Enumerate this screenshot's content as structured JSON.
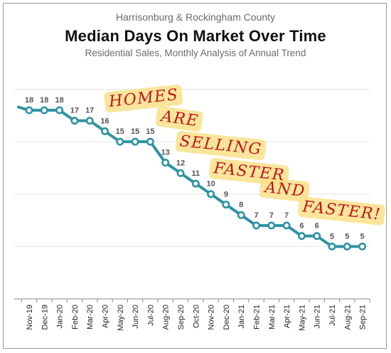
{
  "header": {
    "supertitle": "Harrisonburg & Rockingham County",
    "title": "Median Days On Market Over Time",
    "subtitle": "Residential Sales, Monthly Analysis of Annual Trend"
  },
  "annotation": {
    "words": [
      "HOMES",
      "ARE",
      "SELLING",
      "FASTER",
      "AND",
      "FASTER!"
    ],
    "color": "#c3151f",
    "highlight": "#f8e28a"
  },
  "chart_data": {
    "type": "line",
    "title": "Median Days On Market Over Time",
    "subtitle": "Residential Sales, Monthly Analysis of Annual Trend",
    "xlabel": "",
    "ylabel": "",
    "grid": true,
    "ylim": [
      0,
      22
    ],
    "line_color": "#2e93a2",
    "categories": [
      "Nov-19",
      "Dec-19",
      "Jan-20",
      "Feb-20",
      "Mar-20",
      "Apr-20",
      "May-20",
      "Jun-20",
      "Jul-20",
      "Aug-20",
      "Sep-20",
      "Oct-20",
      "Nov-20",
      "Dec-20",
      "Jan-21",
      "Feb-21",
      "Mar-21",
      "Apr-21",
      "May-21",
      "Jun-21",
      "Jul-21",
      "Aug-21",
      "Sep-21"
    ],
    "series": [
      {
        "values": [
          18,
          18,
          18,
          17,
          17,
          16,
          15,
          15,
          15,
          13,
          12,
          11,
          10,
          9,
          8,
          7,
          7,
          7,
          6,
          6,
          5,
          5,
          5
        ]
      }
    ],
    "leading_value": 18.3
  }
}
